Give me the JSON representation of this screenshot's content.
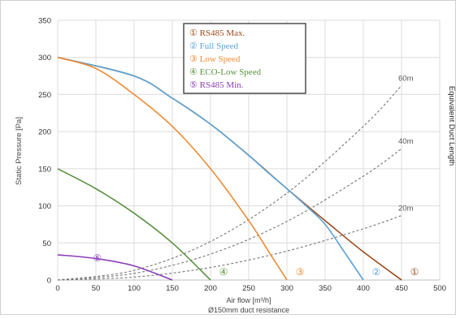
{
  "chart_data": {
    "type": "line",
    "xlabel": "Air flow  [m³/h]",
    "xlabel_sub": "Ø150mm duct resistance",
    "ylabel": "Static Pressure [Pa]",
    "right_label": "Equivalent Duct Length",
    "xlim": [
      0,
      500
    ],
    "ylim": [
      0,
      350
    ],
    "x_ticks": [
      "0",
      "50",
      "100",
      "150",
      "200",
      "250",
      "300",
      "350",
      "400",
      "450",
      "500"
    ],
    "y_ticks": [
      "0",
      "50",
      "100",
      "150",
      "200",
      "250",
      "300",
      "350"
    ],
    "grid": true,
    "legend_position": "top-center",
    "series": [
      {
        "name": "① RS485 Max.",
        "marker": "①",
        "color": "#9b4a1e",
        "x": [
          0,
          100,
          150,
          200,
          250,
          300,
          350,
          400,
          450
        ],
        "y": [
          300,
          275,
          245,
          210,
          168,
          123,
          80,
          38,
          0
        ]
      },
      {
        "name": "② Full Speed",
        "marker": "②",
        "color": "#5ba3d6",
        "x": [
          0,
          100,
          150,
          200,
          250,
          275,
          300,
          325,
          350,
          375,
          400
        ],
        "y": [
          300,
          275,
          245,
          210,
          168,
          145,
          123,
          100,
          75,
          38,
          0
        ]
      },
      {
        "name": "③ Low Speed",
        "marker": "③",
        "color": "#ef8a33",
        "x": [
          0,
          50,
          100,
          150,
          200,
          250,
          275,
          300
        ],
        "y": [
          300,
          285,
          250,
          207,
          150,
          80,
          40,
          0
        ]
      },
      {
        "name": "④ ECO-Low Speed",
        "marker": "④",
        "color": "#5b9140",
        "x": [
          0,
          50,
          100,
          150,
          200
        ],
        "y": [
          150,
          123,
          90,
          50,
          0
        ]
      },
      {
        "name": "⑤ RS485 Min.",
        "marker": "⑤",
        "color": "#8a3fb5",
        "x": [
          0,
          50,
          100,
          150
        ],
        "y": [
          34,
          29,
          19,
          0
        ]
      }
    ],
    "duct_curves": [
      {
        "label": "20m",
        "x": [
          0,
          100,
          200,
          300,
          400,
          450
        ],
        "y": [
          0,
          4,
          17,
          39,
          69,
          87
        ]
      },
      {
        "label": "40m",
        "x": [
          0,
          100,
          200,
          300,
          400,
          450
        ],
        "y": [
          0,
          9,
          35,
          79,
          140,
          177
        ]
      },
      {
        "label": "60m",
        "x": [
          0,
          100,
          200,
          300,
          400,
          450
        ],
        "y": [
          0,
          13,
          52,
          117,
          207,
          262
        ]
      }
    ]
  }
}
